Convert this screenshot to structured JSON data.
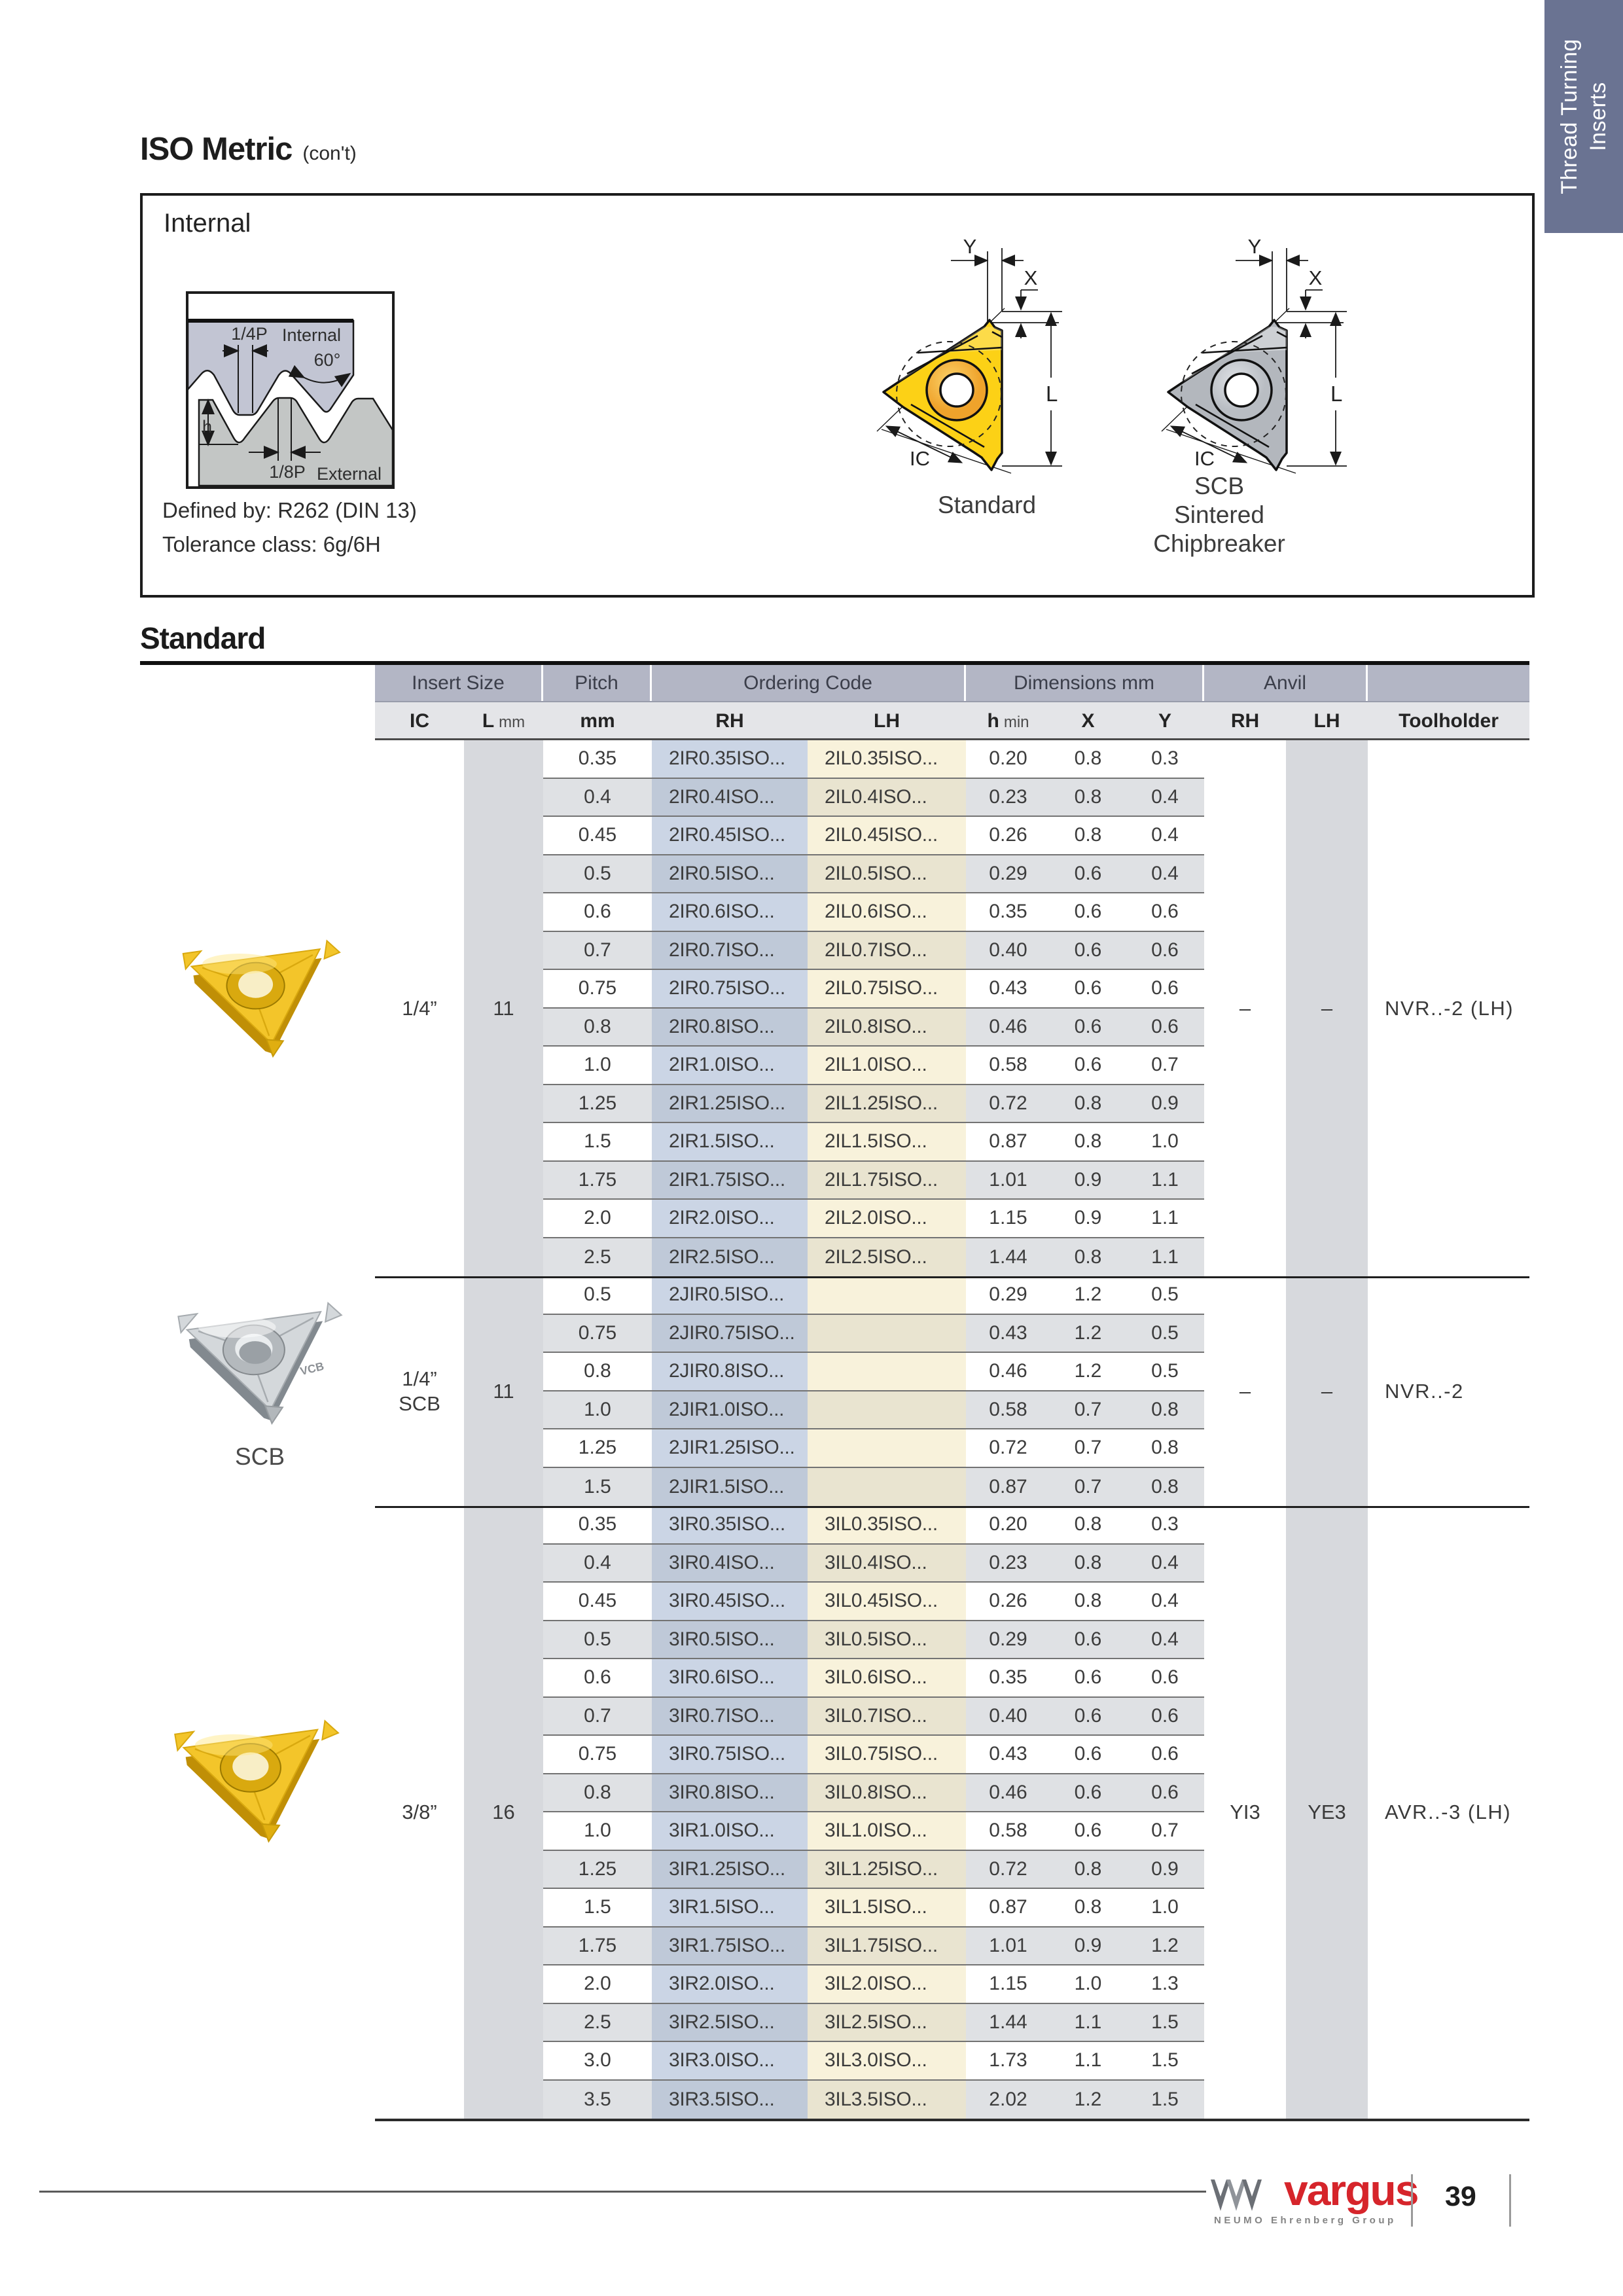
{
  "page": {
    "title": "ISO Metric",
    "title_suffix": "(con't)",
    "side_tab": {
      "line1": "Thread Turning",
      "line2": "Inserts"
    }
  },
  "internal_box": {
    "heading": "Internal",
    "defined_by": "Defined by: R262 (DIN 13)",
    "tolerance": "Tolerance class: 6g/6H",
    "profile": {
      "quarter_p": "1/4P",
      "internal": "Internal",
      "angle": "60°",
      "h": "h",
      "eighth_p": "1/8P",
      "external": "External"
    },
    "dim_labels": {
      "y": "Y",
      "x": "X",
      "l": "L",
      "ic": "IC"
    },
    "standard_caption": "Standard",
    "scb_caption_1": "SCB",
    "scb_caption_2": "Sintered",
    "scb_caption_3": "Chipbreaker"
  },
  "photos": {
    "scb_label": "SCB",
    "scb_engraving": "VCB"
  },
  "table": {
    "section_title": "Standard",
    "band1": [
      "Insert Size",
      "Pitch",
      "Ordering Code",
      "Dimensions mm",
      "Anvil"
    ],
    "band2": {
      "ic": "IC",
      "l": "L",
      "l_unit": "mm",
      "pitch": "mm",
      "rh": "RH",
      "lh": "LH",
      "h": "h",
      "h_unit": "min",
      "x": "X",
      "y": "Y",
      "anvil_rh": "RH",
      "anvil_lh": "LH",
      "toolholder": "Toolholder"
    },
    "groups": [
      {
        "ic": "1/4”",
        "l": "11",
        "anvil_rh": "–",
        "anvil_lh": "–",
        "toolholder": "NVR..-2 (LH)",
        "rows": [
          [
            "0.35",
            "2IR0.35ISO...",
            "2IL0.35ISO...",
            "0.20",
            "0.8",
            "0.3"
          ],
          [
            "0.4",
            "2IR0.4ISO...",
            "2IL0.4ISO...",
            "0.23",
            "0.8",
            "0.4"
          ],
          [
            "0.45",
            "2IR0.45ISO...",
            "2IL0.45ISO...",
            "0.26",
            "0.8",
            "0.4"
          ],
          [
            "0.5",
            "2IR0.5ISO...",
            "2IL0.5ISO...",
            "0.29",
            "0.6",
            "0.4"
          ],
          [
            "0.6",
            "2IR0.6ISO...",
            "2IL0.6ISO...",
            "0.35",
            "0.6",
            "0.6"
          ],
          [
            "0.7",
            "2IR0.7ISO...",
            "2IL0.7ISO...",
            "0.40",
            "0.6",
            "0.6"
          ],
          [
            "0.75",
            "2IR0.75ISO...",
            "2IL0.75ISO...",
            "0.43",
            "0.6",
            "0.6"
          ],
          [
            "0.8",
            "2IR0.8ISO...",
            "2IL0.8ISO...",
            "0.46",
            "0.6",
            "0.6"
          ],
          [
            "1.0",
            "2IR1.0ISO...",
            "2IL1.0ISO...",
            "0.58",
            "0.6",
            "0.7"
          ],
          [
            "1.25",
            "2IR1.25ISO...",
            "2IL1.25ISO...",
            "0.72",
            "0.8",
            "0.9"
          ],
          [
            "1.5",
            "2IR1.5ISO...",
            "2IL1.5ISO...",
            "0.87",
            "0.8",
            "1.0"
          ],
          [
            "1.75",
            "2IR1.75ISO...",
            "2IL1.75ISO...",
            "1.01",
            "0.9",
            "1.1"
          ],
          [
            "2.0",
            "2IR2.0ISO...",
            "2IL2.0ISO...",
            "1.15",
            "0.9",
            "1.1"
          ],
          [
            "2.5",
            "2IR2.5ISO...",
            "2IL2.5ISO...",
            "1.44",
            "0.8",
            "1.1"
          ]
        ]
      },
      {
        "ic": "1/4”\nSCB",
        "l": "11",
        "anvil_rh": "–",
        "anvil_lh": "–",
        "toolholder": "NVR..-2",
        "rows": [
          [
            "0.5",
            "2JIR0.5ISO...",
            "",
            "0.29",
            "1.2",
            "0.5"
          ],
          [
            "0.75",
            "2JIR0.75ISO...",
            "",
            "0.43",
            "1.2",
            "0.5"
          ],
          [
            "0.8",
            "2JIR0.8ISO...",
            "",
            "0.46",
            "1.2",
            "0.5"
          ],
          [
            "1.0",
            "2JIR1.0ISO...",
            "",
            "0.58",
            "0.7",
            "0.8"
          ],
          [
            "1.25",
            "2JIR1.25ISO...",
            "",
            "0.72",
            "0.7",
            "0.8"
          ],
          [
            "1.5",
            "2JIR1.5ISO...",
            "",
            "0.87",
            "0.7",
            "0.8"
          ]
        ]
      },
      {
        "ic": "3/8”",
        "l": "16",
        "anvil_rh": "YI3",
        "anvil_lh": "YE3",
        "toolholder": "AVR..-3 (LH)",
        "rows": [
          [
            "0.35",
            "3IR0.35ISO...",
            "3IL0.35ISO...",
            "0.20",
            "0.8",
            "0.3"
          ],
          [
            "0.4",
            "3IR0.4ISO...",
            "3IL0.4ISO...",
            "0.23",
            "0.8",
            "0.4"
          ],
          [
            "0.45",
            "3IR0.45ISO...",
            "3IL0.45ISO...",
            "0.26",
            "0.8",
            "0.4"
          ],
          [
            "0.5",
            "3IR0.5ISO...",
            "3IL0.5ISO...",
            "0.29",
            "0.6",
            "0.4"
          ],
          [
            "0.6",
            "3IR0.6ISO...",
            "3IL0.6ISO...",
            "0.35",
            "0.6",
            "0.6"
          ],
          [
            "0.7",
            "3IR0.7ISO...",
            "3IL0.7ISO...",
            "0.40",
            "0.6",
            "0.6"
          ],
          [
            "0.75",
            "3IR0.75ISO...",
            "3IL0.75ISO...",
            "0.43",
            "0.6",
            "0.6"
          ],
          [
            "0.8",
            "3IR0.8ISO...",
            "3IL0.8ISO...",
            "0.46",
            "0.6",
            "0.6"
          ],
          [
            "1.0",
            "3IR1.0ISO...",
            "3IL1.0ISO...",
            "0.58",
            "0.6",
            "0.7"
          ],
          [
            "1.25",
            "3IR1.25ISO...",
            "3IL1.25ISO...",
            "0.72",
            "0.8",
            "0.9"
          ],
          [
            "1.5",
            "3IR1.5ISO...",
            "3IL1.5ISO...",
            "0.87",
            "0.8",
            "1.0"
          ],
          [
            "1.75",
            "3IR1.75ISO...",
            "3IL1.75ISO...",
            "1.01",
            "0.9",
            "1.2"
          ],
          [
            "2.0",
            "3IR2.0ISO...",
            "3IL2.0ISO...",
            "1.15",
            "1.0",
            "1.3"
          ],
          [
            "2.5",
            "3IR2.5ISO...",
            "3IL2.5ISO...",
            "1.44",
            "1.1",
            "1.5"
          ],
          [
            "3.0",
            "3IR3.0ISO...",
            "3IL3.0ISO...",
            "1.73",
            "1.1",
            "1.5"
          ],
          [
            "3.5",
            "3IR3.5ISO...",
            "3IL3.5ISO...",
            "2.02",
            "1.2",
            "1.5"
          ]
        ]
      }
    ]
  },
  "footer": {
    "brand": "vargus",
    "tagline": "NEUMO Ehrenberg Group",
    "page_number": "39"
  }
}
